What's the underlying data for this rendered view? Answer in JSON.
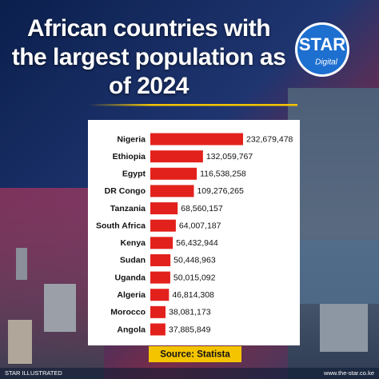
{
  "chart_data": {
    "type": "bar",
    "orientation": "horizontal",
    "title": "African countries with the largest population as of 2024",
    "categories": [
      "Nigeria",
      "Ethiopia",
      "Egypt",
      "DR Congo",
      "Tanzania",
      "South Africa",
      "Kenya",
      "Sudan",
      "Uganda",
      "Algeria",
      "Morocco",
      "Angola"
    ],
    "values": [
      232679478,
      132059767,
      116538258,
      109276265,
      68560157,
      64007187,
      56432944,
      50448963,
      50015092,
      46814308,
      38081173,
      37885849
    ],
    "value_labels": [
      "232,679,478",
      "132,059,767",
      "116,538,258",
      "109,276,265",
      "68,560,157",
      "64,007,187",
      "56,432,944",
      "50,448,963",
      "50,015,092",
      "46,814,308",
      "38,081,173",
      "37,885,849"
    ],
    "color": "#e3211c",
    "source": "Source: Statista"
  },
  "logo": {
    "name": "STAR",
    "sub": "Digital"
  },
  "footer": {
    "left": "STAR ILLUSTRATED",
    "right": "www.the-star.co.ke"
  }
}
